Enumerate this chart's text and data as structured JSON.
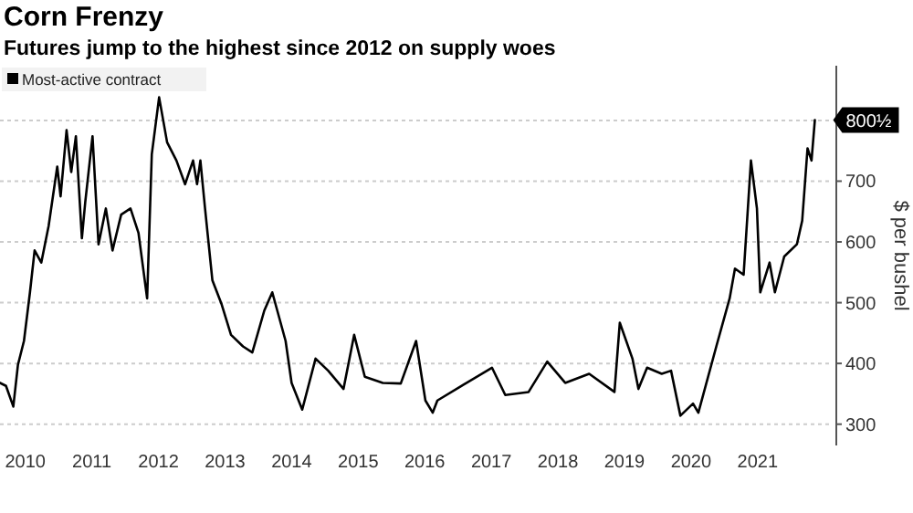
{
  "chart_data": {
    "type": "line",
    "title": "Corn Frenzy",
    "subtitle": "Futures jump to the highest since 2012 on supply woes",
    "ylabel": "$ per bushel",
    "legend": "top left",
    "grid": "y",
    "xlim": [
      2009.62,
      2022.1
    ],
    "xticks": [
      2010,
      2011,
      2012,
      2013,
      2014,
      2015,
      2016,
      2017,
      2018,
      2019,
      2020,
      2021
    ],
    "ylim": [
      265,
      890
    ],
    "yticks": [
      300,
      400,
      500,
      600,
      700,
      {
        "value": 800,
        "label": null
      }
    ],
    "annotations": [
      {
        "text": "800½",
        "x": 2021.86,
        "y": 800.5
      }
    ],
    "series": [
      {
        "name": "Most-active contract",
        "color": "#000000",
        "x": [
          2009.62,
          2009.71,
          2009.82,
          2009.89,
          2009.98,
          2010.07,
          2010.14,
          2010.24,
          2010.35,
          2010.48,
          2010.53,
          2010.62,
          2010.69,
          2010.76,
          2010.85,
          2010.9,
          2011.01,
          2011.1,
          2011.21,
          2011.31,
          2011.44,
          2011.58,
          2011.7,
          2011.83,
          2011.9,
          2012.01,
          2012.13,
          2012.27,
          2012.4,
          2012.52,
          2012.58,
          2012.63,
          2012.7,
          2012.81,
          2012.95,
          2013.09,
          2013.27,
          2013.41,
          2013.59,
          2013.71,
          2013.91,
          2014.0,
          2014.16,
          2014.36,
          2014.55,
          2014.78,
          2014.94,
          2015.1,
          2015.37,
          2015.64,
          2015.87,
          2016.01,
          2016.12,
          2016.19,
          2016.55,
          2017.01,
          2017.21,
          2017.56,
          2017.84,
          2018.11,
          2018.47,
          2018.85,
          2018.93,
          2019.12,
          2019.21,
          2019.34,
          2019.56,
          2019.7,
          2019.84,
          2020.03,
          2020.11,
          2020.38,
          2020.58,
          2020.66,
          2020.79,
          2020.9,
          2020.99,
          2021.04,
          2021.18,
          2021.26,
          2021.4,
          2021.59,
          2021.67,
          2021.75,
          2021.81,
          2021.86
        ],
        "values": [
          368,
          363,
          329,
          398,
          437,
          517,
          586,
          566,
          626,
          724,
          675,
          784,
          715,
          774,
          606,
          665,
          774,
          596,
          655,
          586,
          645,
          655,
          615,
          507,
          744,
          838,
          764,
          734,
          695,
          734,
          695,
          734,
          655,
          537,
          497,
          447,
          428,
          418,
          487,
          517,
          437,
          368,
          324,
          408,
          388,
          358,
          447,
          378,
          368,
          367,
          437,
          339,
          319,
          339,
          363,
          393,
          348,
          353,
          403,
          368,
          383,
          353,
          467,
          408,
          358,
          393,
          383,
          388,
          314,
          334,
          319,
          428,
          507,
          556,
          546,
          734,
          655,
          517,
          566,
          517,
          576,
          596,
          635,
          754,
          734,
          800.5
        ]
      }
    ]
  }
}
